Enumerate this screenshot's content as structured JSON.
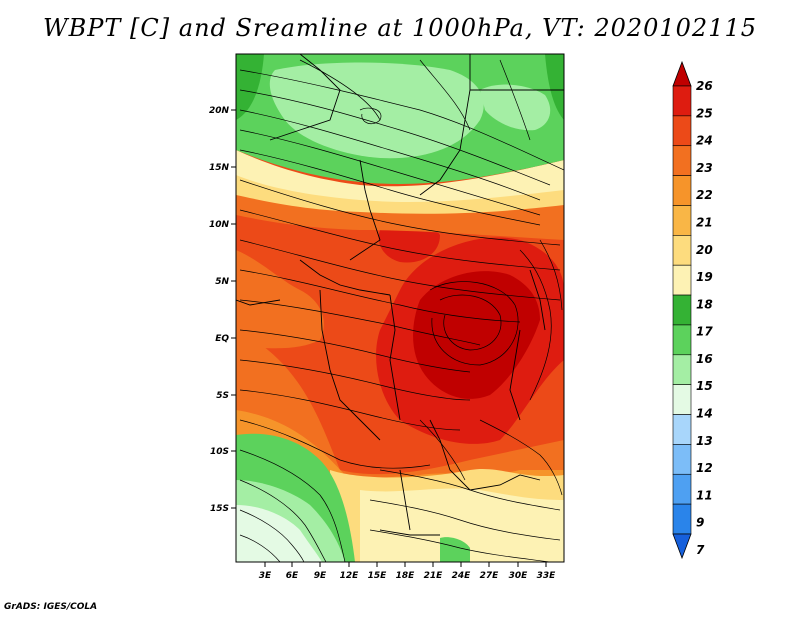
{
  "title": "WBPT [C] and Sreamline at 1000hPa, VT: 2020102115",
  "footer": "GrADS: IGES/COLA",
  "lat_labels": [
    "20N",
    "15N",
    "10N",
    "5N",
    "EQ",
    "5S",
    "10S",
    "15S"
  ],
  "lon_labels": [
    "3E",
    "6E",
    "9E",
    "12E",
    "15E",
    "18E",
    "21E",
    "24E",
    "27E",
    "30E",
    "33E"
  ],
  "colorbar": {
    "labels": [
      "26",
      "25",
      "24",
      "23",
      "22",
      "21",
      "20",
      "19",
      "18",
      "17",
      "16",
      "15",
      "14",
      "13",
      "12",
      "11",
      "9",
      "7"
    ],
    "colors": [
      "#c00000",
      "#de1c10",
      "#ec4a18",
      "#f27020",
      "#f6942a",
      "#f9b646",
      "#fddc7e",
      "#fdf2b4",
      "#34b234",
      "#5cd25c",
      "#a4eea4",
      "#e4fae4",
      "#a8d6fb",
      "#7cbdf8",
      "#4ea0f2",
      "#2a84ea",
      "#1660dc"
    ]
  }
}
